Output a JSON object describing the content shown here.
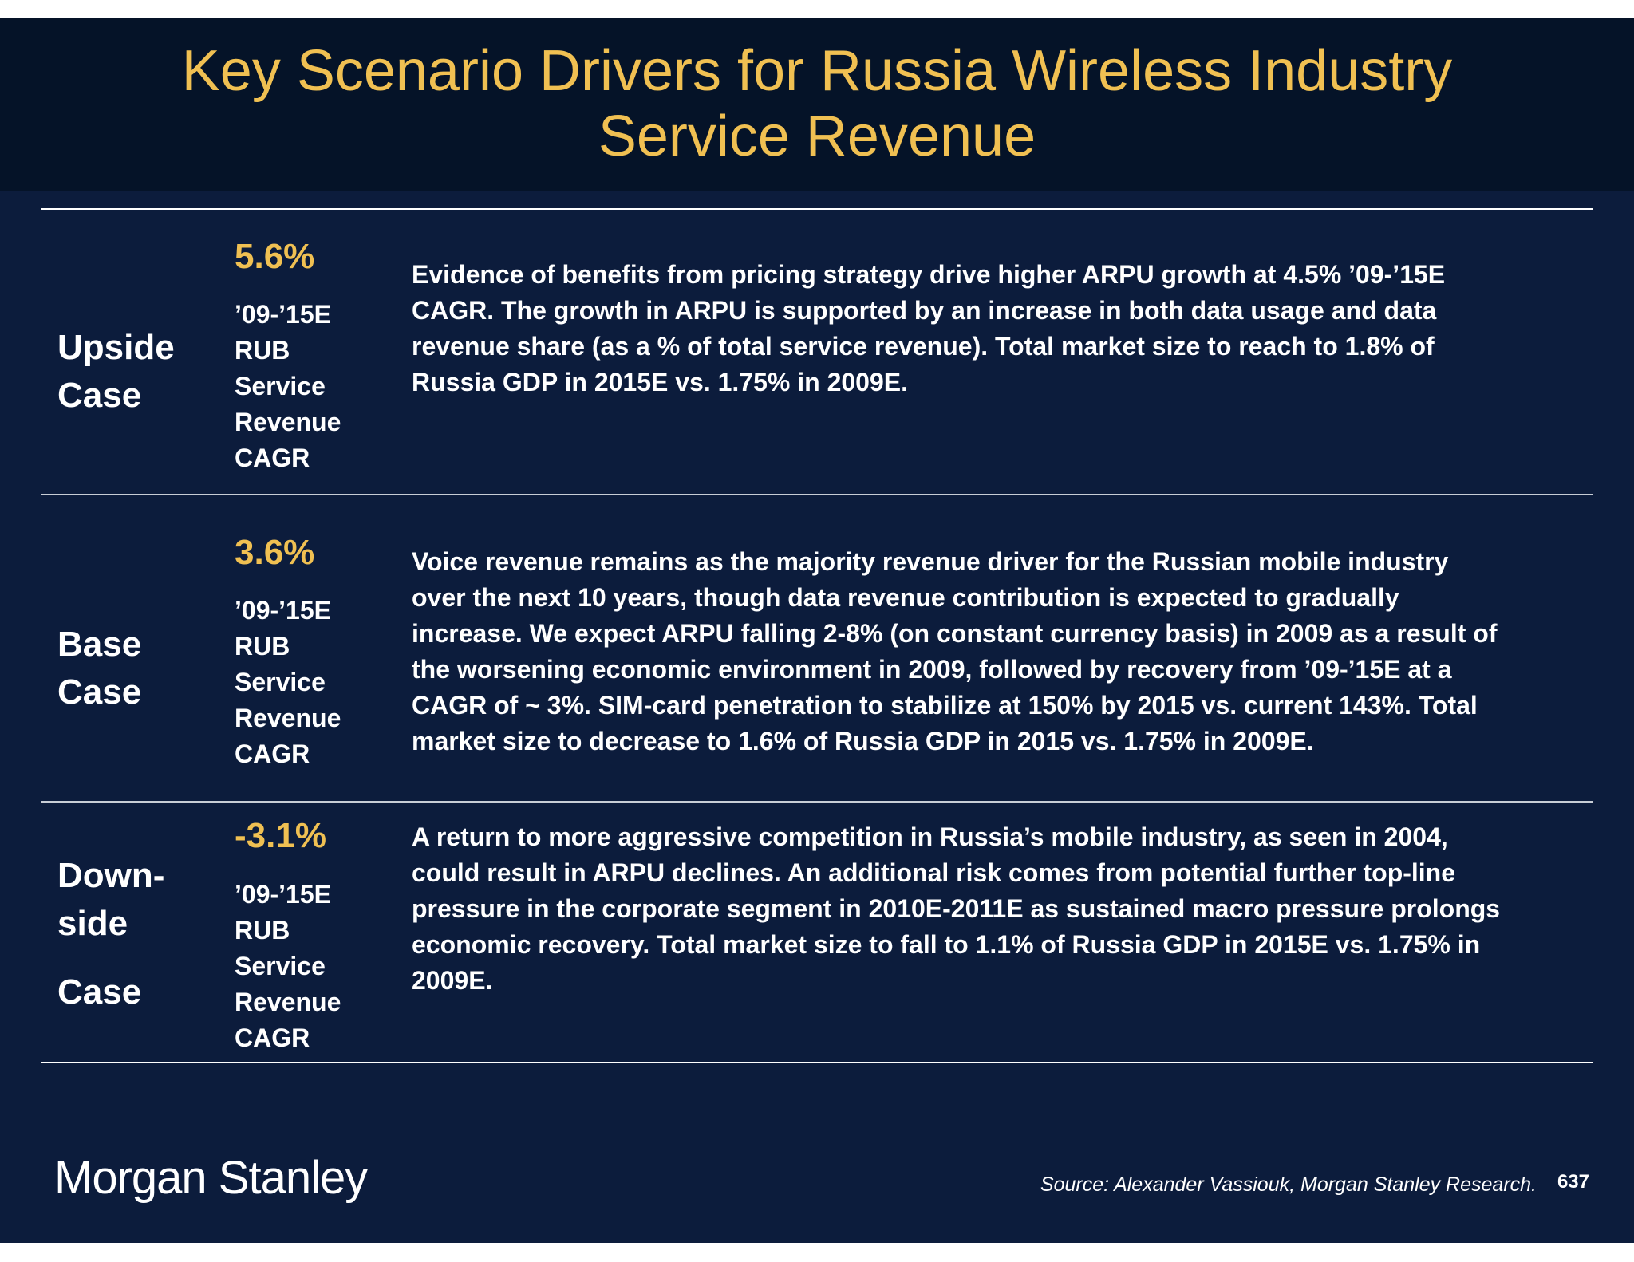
{
  "slide": {
    "title_lines": [
      "Key Scenario Drivers for Russia Wireless Industry",
      "Service Revenue"
    ],
    "metric_lines": [
      "’09-’15E",
      "RUB",
      "Service",
      "Revenue",
      "CAGR"
    ],
    "cases": [
      {
        "label_lines": [
          "Upside",
          "Case"
        ],
        "pct": "5.6%",
        "desc_lines": [
          "Evidence of benefits from pricing strategy drive higher ARPU growth at 4.5% ’09-’15E",
          "CAGR. The growth in ARPU is supported by an increase in both data usage and data",
          "revenue share (as a % of total service revenue). Total market size to reach to 1.8% of",
          "Russia GDP in 2015E vs. 1.75% in 2009E."
        ]
      },
      {
        "label_lines": [
          "Base",
          "Case"
        ],
        "pct": "3.6%",
        "desc_lines": [
          "Voice revenue remains as the majority revenue driver for the Russian mobile industry",
          "over the next 10 years, though data revenue contribution is expected to gradually",
          "increase. We expect ARPU falling 2-8% (on constant currency basis) in 2009 as a result of",
          "the worsening economic environment in 2009, followed by recovery from ’09-’15E at a",
          "CAGR of ~ 3%. SIM-card penetration to stabilize at 150% by 2015 vs. current 143%. Total",
          "market size to decrease to 1.6% of Russia GDP in 2015 vs. 1.75% in 2009E."
        ]
      },
      {
        "label_lines": [
          "Down-",
          "side",
          "Case"
        ],
        "pct": "-3.1%",
        "desc_lines": [
          "A return to more aggressive competition in Russia’s mobile industry, as seen in 2004,",
          "could result in ARPU declines. An additional risk comes from potential further top-line",
          "pressure in the corporate segment in 2010E-2011E as sustained macro pressure prolongs",
          "economic recovery. Total market size to fall to 1.1% of Russia GDP in 2015E vs. 1.75% in",
          "2009E."
        ]
      }
    ],
    "logo": "Morgan Stanley",
    "source": "Source: Alexander Vassiouk, Morgan Stanley Research.",
    "page_number": "637"
  }
}
